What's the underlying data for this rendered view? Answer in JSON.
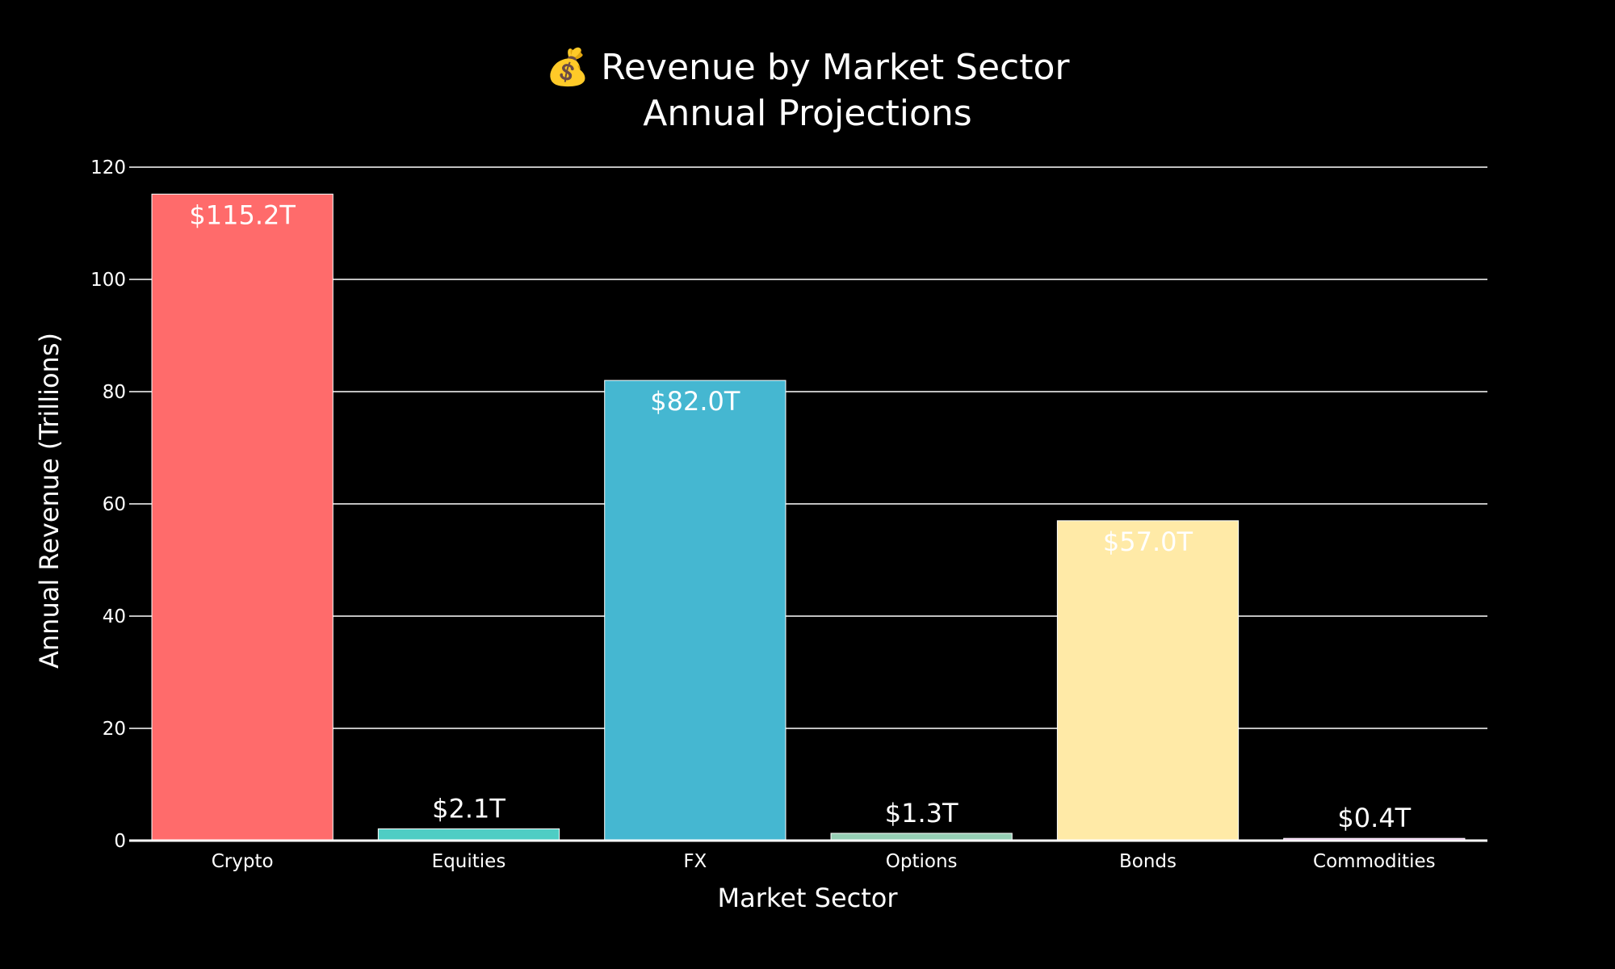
{
  "chart_data": {
    "type": "bar",
    "title": "💰 Revenue by Market Sector",
    "subtitle": "Annual Projections",
    "xlabel": "Market Sector",
    "ylabel": "Annual Revenue (Trillions)",
    "categories": [
      "Crypto",
      "Equities",
      "FX",
      "Options",
      "Bonds",
      "Commodities"
    ],
    "values": [
      115.2,
      2.1,
      82.0,
      1.3,
      57.0,
      0.4
    ],
    "data_labels": [
      "$115.2T",
      "$2.1T",
      "$82.0T",
      "$1.3T",
      "$57.0T",
      "$0.4T"
    ],
    "colors": [
      "#FF6B6B",
      "#4ECDC4",
      "#45B7D1",
      "#96CEB4",
      "#FFEAA7",
      "#DDA0DD"
    ],
    "ylim": [
      0,
      120
    ],
    "yticks": [
      0,
      20,
      40,
      60,
      80,
      100,
      120
    ],
    "grid": true,
    "background": "#000000"
  }
}
